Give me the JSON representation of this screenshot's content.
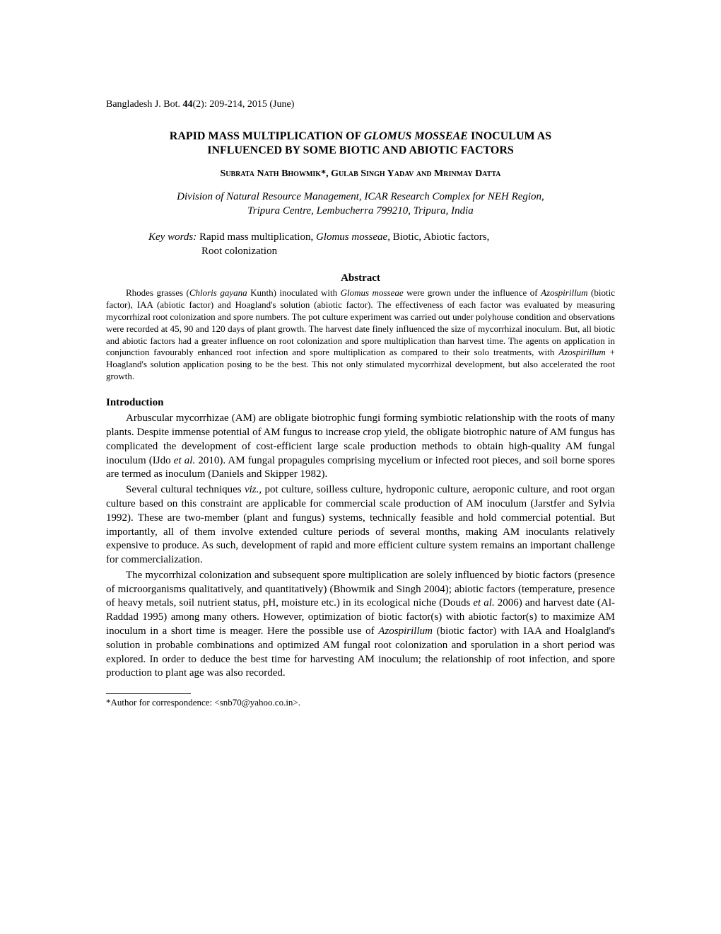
{
  "journal": {
    "name": "Bangladesh J. Bot.",
    "volume": "44",
    "issue": "(2): 209-214, 2015 (June)"
  },
  "title": {
    "line1": "RAPID MASS MULTIPLICATION OF ",
    "line1_italic": "GLOMUS MOSSEAE",
    "line1_end": " INOCULUM AS",
    "line2": "INFLUENCED BY SOME BIOTIC AND ABIOTIC FACTORS"
  },
  "authors": "Subrata Nath Bhowmik*, Gulab Singh Yadav and Mrinmay Datta",
  "affiliation": {
    "line1": "Division of Natural Resource Management, ICAR Research Complex for NEH Region,",
    "line2": "Tripura Centre, Lembucherra 799210, Tripura, India"
  },
  "keywords": {
    "label": "Key words:",
    "text_pre": "  Rapid mass multiplication, ",
    "text_italic": "Glomus mosseae",
    "text_post": ", Biotic, Abiotic factors,",
    "line2": "Root colonization"
  },
  "abstract": {
    "heading": "Abstract",
    "p1_a": "Rhodes grasses (",
    "p1_b": "Chloris gayana",
    "p1_c": " Kunth) inoculated with ",
    "p1_d": "Glomus mosseae",
    "p1_e": " were grown under the influence of ",
    "p1_f": "Azospirillum",
    "p1_g": " (biotic factor), IAA (abiotic factor) and Hoagland's solution (abiotic factor). The effectiveness of each factor was evaluated by measuring mycorrhizal root colonization and spore numbers. The pot culture experiment was carried out under polyhouse condition and observations were recorded at 45, 90 and 120 days of plant growth. The harvest date finely influenced the size of mycorrhizal inoculum. But, all biotic and abiotic factors had a greater influence on root colonization and spore multiplication than harvest time. The agents on application in conjunction favourably enhanced root infection and spore multiplication as compared to their solo treatments, with ",
    "p1_h": "Azospirillum",
    "p1_i": " + Hoagland's solution application posing to be the best. This not only stimulated mycorrhizal development, but also accelerated the root growth."
  },
  "intro": {
    "heading": "Introduction",
    "p1_a": "Arbuscular mycorrhizae (AM) are obligate biotrophic fungi forming symbiotic relationship with the roots of many plants. Despite immense potential of AM fungus to increase crop yield, the obligate biotrophic nature of AM fungus has complicated the development of cost-efficient large scale production methods to obtain high-quality AM fungal inoculum (IJdo ",
    "p1_b": "et al.",
    "p1_c": " 2010). AM fungal propagules comprising mycelium or infected root pieces, and soil borne spores are termed as inoculum (Daniels and Skipper 1982).",
    "p2_a": "Several cultural techniques ",
    "p2_b": "viz.,",
    "p2_c": " pot culture, soilless culture, hydroponic culture, aeroponic culture, and root organ culture based on this constraint are applicable for commercial scale production of AM inoculum (Jarstfer and Sylvia 1992). These are two-member (plant and fungus) systems, technically feasible and hold commercial potential. But importantly, all of them involve extended culture periods of several months, making AM inoculants relatively expensive to produce. As such, development of rapid and more efficient culture system remains an important challenge for commercialization.",
    "p3_a": "The mycorrhizal colonization and subsequent spore multiplication are solely influenced by biotic factors (presence of microorganisms qualitatively, and quantitatively) (Bhowmik and Singh 2004); abiotic factors (temperature, presence of heavy metals, soil nutrient status, pH, moisture etc.) in its ecological niche (Douds ",
    "p3_b": "et al.",
    "p3_c": " 2006) and harvest date (Al-Raddad 1995) among many others. However, optimization of biotic factor(s) with abiotic factor(s) to maximize AM inoculum in a short time is meager. Here the possible use of ",
    "p3_d": "Azospirillum",
    "p3_e": " (biotic factor) with IAA and Hoalgland's solution in probable combinations and optimized AM fungal root colonization and sporulation in a short period was explored. In order to deduce the best time for harvesting AM inoculum; the relationship of root infection, and spore production to plant age was also recorded."
  },
  "footnote": "*Author for correspondence: <snb70@yahoo.co.in>."
}
